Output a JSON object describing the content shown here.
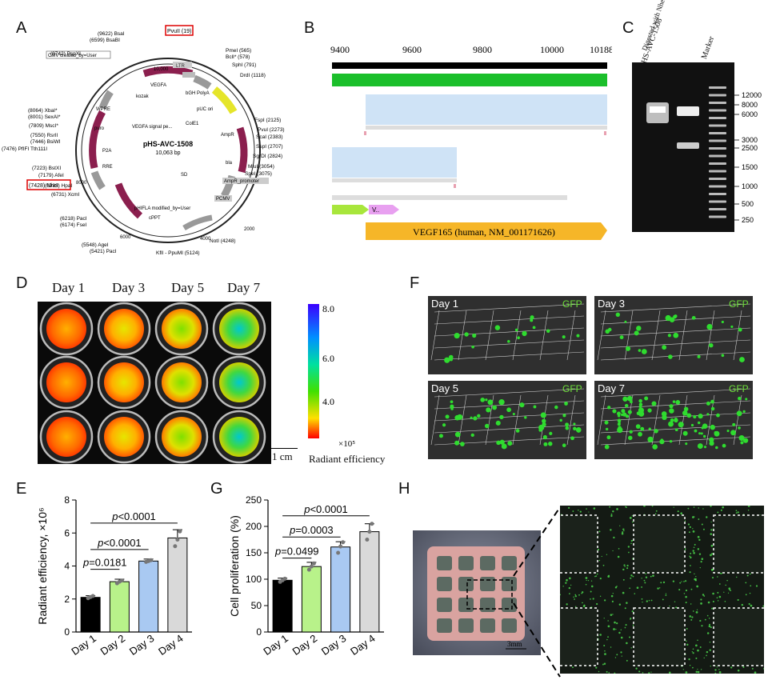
{
  "panels": {
    "A": "A",
    "B": "B",
    "C": "C",
    "D": "D",
    "E": "E",
    "F": "F",
    "G": "G",
    "H": "H"
  },
  "plasmid": {
    "name": "pHS-AVC-1508",
    "size": "10,063 bp",
    "top_tick": "10,000",
    "ticks": [
      "2000",
      "4000",
      "6000",
      "8000"
    ],
    "highlight_sites": [
      "PvuII (19)",
      "(7428) NheI"
    ],
    "sites_right": [
      "PmeI (565)",
      "BclI* (578)",
      "SphI (791)",
      "DrdI (1118)",
      "FspI (2125)",
      "PvuI (2273)",
      "ScaI (2383)",
      "SspI (2707)",
      "SgrDI (2824)",
      "MluI (3054)",
      "SpeI (3075)",
      "NotI (4248)",
      "KflI - PpuMI (5124)"
    ],
    "sites_left": [
      "(9622) BsaI",
      "(6599) BsaBI",
      "(8742) PspXI",
      "(8064) XbaI*",
      "(8001) SexAI*",
      "(7809) MscI*",
      "(7550) RsrII",
      "(7446) BsiWI",
      "(7476) PfIFI Tth111I",
      "(7223) BstXI",
      "(7179) AfeI",
      "(6933) HpaI",
      "(6731) XcmI",
      "(6218) PacI",
      "(6174) FseI",
      "(5548) AgeI",
      "(5421) PacI"
    ],
    "labels": [
      "CMV created_by=User",
      "VEGFA",
      "bGH PolyA",
      "kozak",
      "pUC ori",
      "ColE1",
      "AmpR",
      "bla",
      "AmpR_promoter",
      "PCMV",
      "VEGFA signal pe...",
      "SD",
      "P2A",
      "pHIFLA modified_by=User",
      "cPPT",
      "WPRE",
      "puro",
      "RRE",
      "LTR"
    ]
  },
  "alignment": {
    "ticks": [
      "9400",
      "9600",
      "9800",
      "10000",
      "10188"
    ],
    "feature_label": "VEGF165 (human, NM_001171626)",
    "small_feature": "V.."
  },
  "gel": {
    "lanes": [
      "pHS-AVC-1508",
      "Digested with NheI/PvuII",
      "Marker"
    ],
    "markers": [
      "12000",
      "8000",
      "6000",
      "3000",
      "2500",
      "1500",
      "1000",
      "500",
      "250"
    ]
  },
  "ivis": {
    "days": [
      "Day 1",
      "Day 3",
      "Day 5",
      "Day 7"
    ],
    "scale_ticks": [
      "8.0",
      "6.0",
      "4.0"
    ],
    "scale_unit": "×10⁵",
    "scale_title": "Radiant efficiency",
    "scalebar": "1 cm"
  },
  "confocal": {
    "days": [
      "Day 1",
      "Day 3",
      "Day 5",
      "Day 7"
    ],
    "channel": "GFP"
  },
  "chart_data": [
    {
      "type": "bar",
      "panel": "E",
      "categories": [
        "Day 1",
        "Day 2",
        "Day 3",
        "Day 4"
      ],
      "values": [
        2.1,
        3.05,
        4.3,
        5.7
      ],
      "errors": [
        0.1,
        0.15,
        0.12,
        0.5
      ],
      "points": [
        [
          2.05,
          2.12,
          2.18
        ],
        [
          2.95,
          3.05,
          3.12
        ],
        [
          4.25,
          4.3,
          4.35
        ],
        [
          5.2,
          5.6,
          6.1
        ]
      ],
      "colors": [
        "#000000",
        "#b8f28a",
        "#a9c9f2",
        "#d9d9d9"
      ],
      "ylabel": "Radiant efficiency, ×10⁶",
      "ylim": [
        0,
        8
      ],
      "yticks": [
        0,
        2,
        4,
        6,
        8
      ],
      "annotations": [
        {
          "from": 0,
          "to": 1,
          "y": 3.8,
          "p": "p",
          "text": "=0.0181"
        },
        {
          "from": 0,
          "to": 2,
          "y": 5.0,
          "p": "p",
          "text": "<0.0001"
        },
        {
          "from": 0,
          "to": 3,
          "y": 6.6,
          "p": "p",
          "text": "<0.0001"
        }
      ]
    },
    {
      "type": "bar",
      "panel": "G",
      "categories": [
        "Day 1",
        "Day 2",
        "Day 3",
        "Day 4"
      ],
      "values": [
        98,
        124,
        161,
        190
      ],
      "errors": [
        4,
        8,
        10,
        15
      ],
      "points": [
        [
          95,
          98,
          101
        ],
        [
          118,
          124,
          130
        ],
        [
          150,
          162,
          170
        ],
        [
          175,
          190,
          205
        ]
      ],
      "colors": [
        "#000000",
        "#b8f28a",
        "#a9c9f2",
        "#d9d9d9"
      ],
      "ylabel": "Cell proliferation (%)",
      "ylim": [
        0,
        250
      ],
      "yticks": [
        0,
        50,
        100,
        150,
        200,
        250
      ],
      "annotations": [
        {
          "from": 0,
          "to": 1,
          "y": 140,
          "p": "p",
          "text": "=0.0499"
        },
        {
          "from": 0,
          "to": 2,
          "y": 180,
          "p": "p",
          "text": "=0.0003"
        },
        {
          "from": 0,
          "to": 3,
          "y": 220,
          "p": "p",
          "text": "<0.0001"
        }
      ]
    }
  ],
  "scaffold": {
    "scalebar": "3mm"
  }
}
